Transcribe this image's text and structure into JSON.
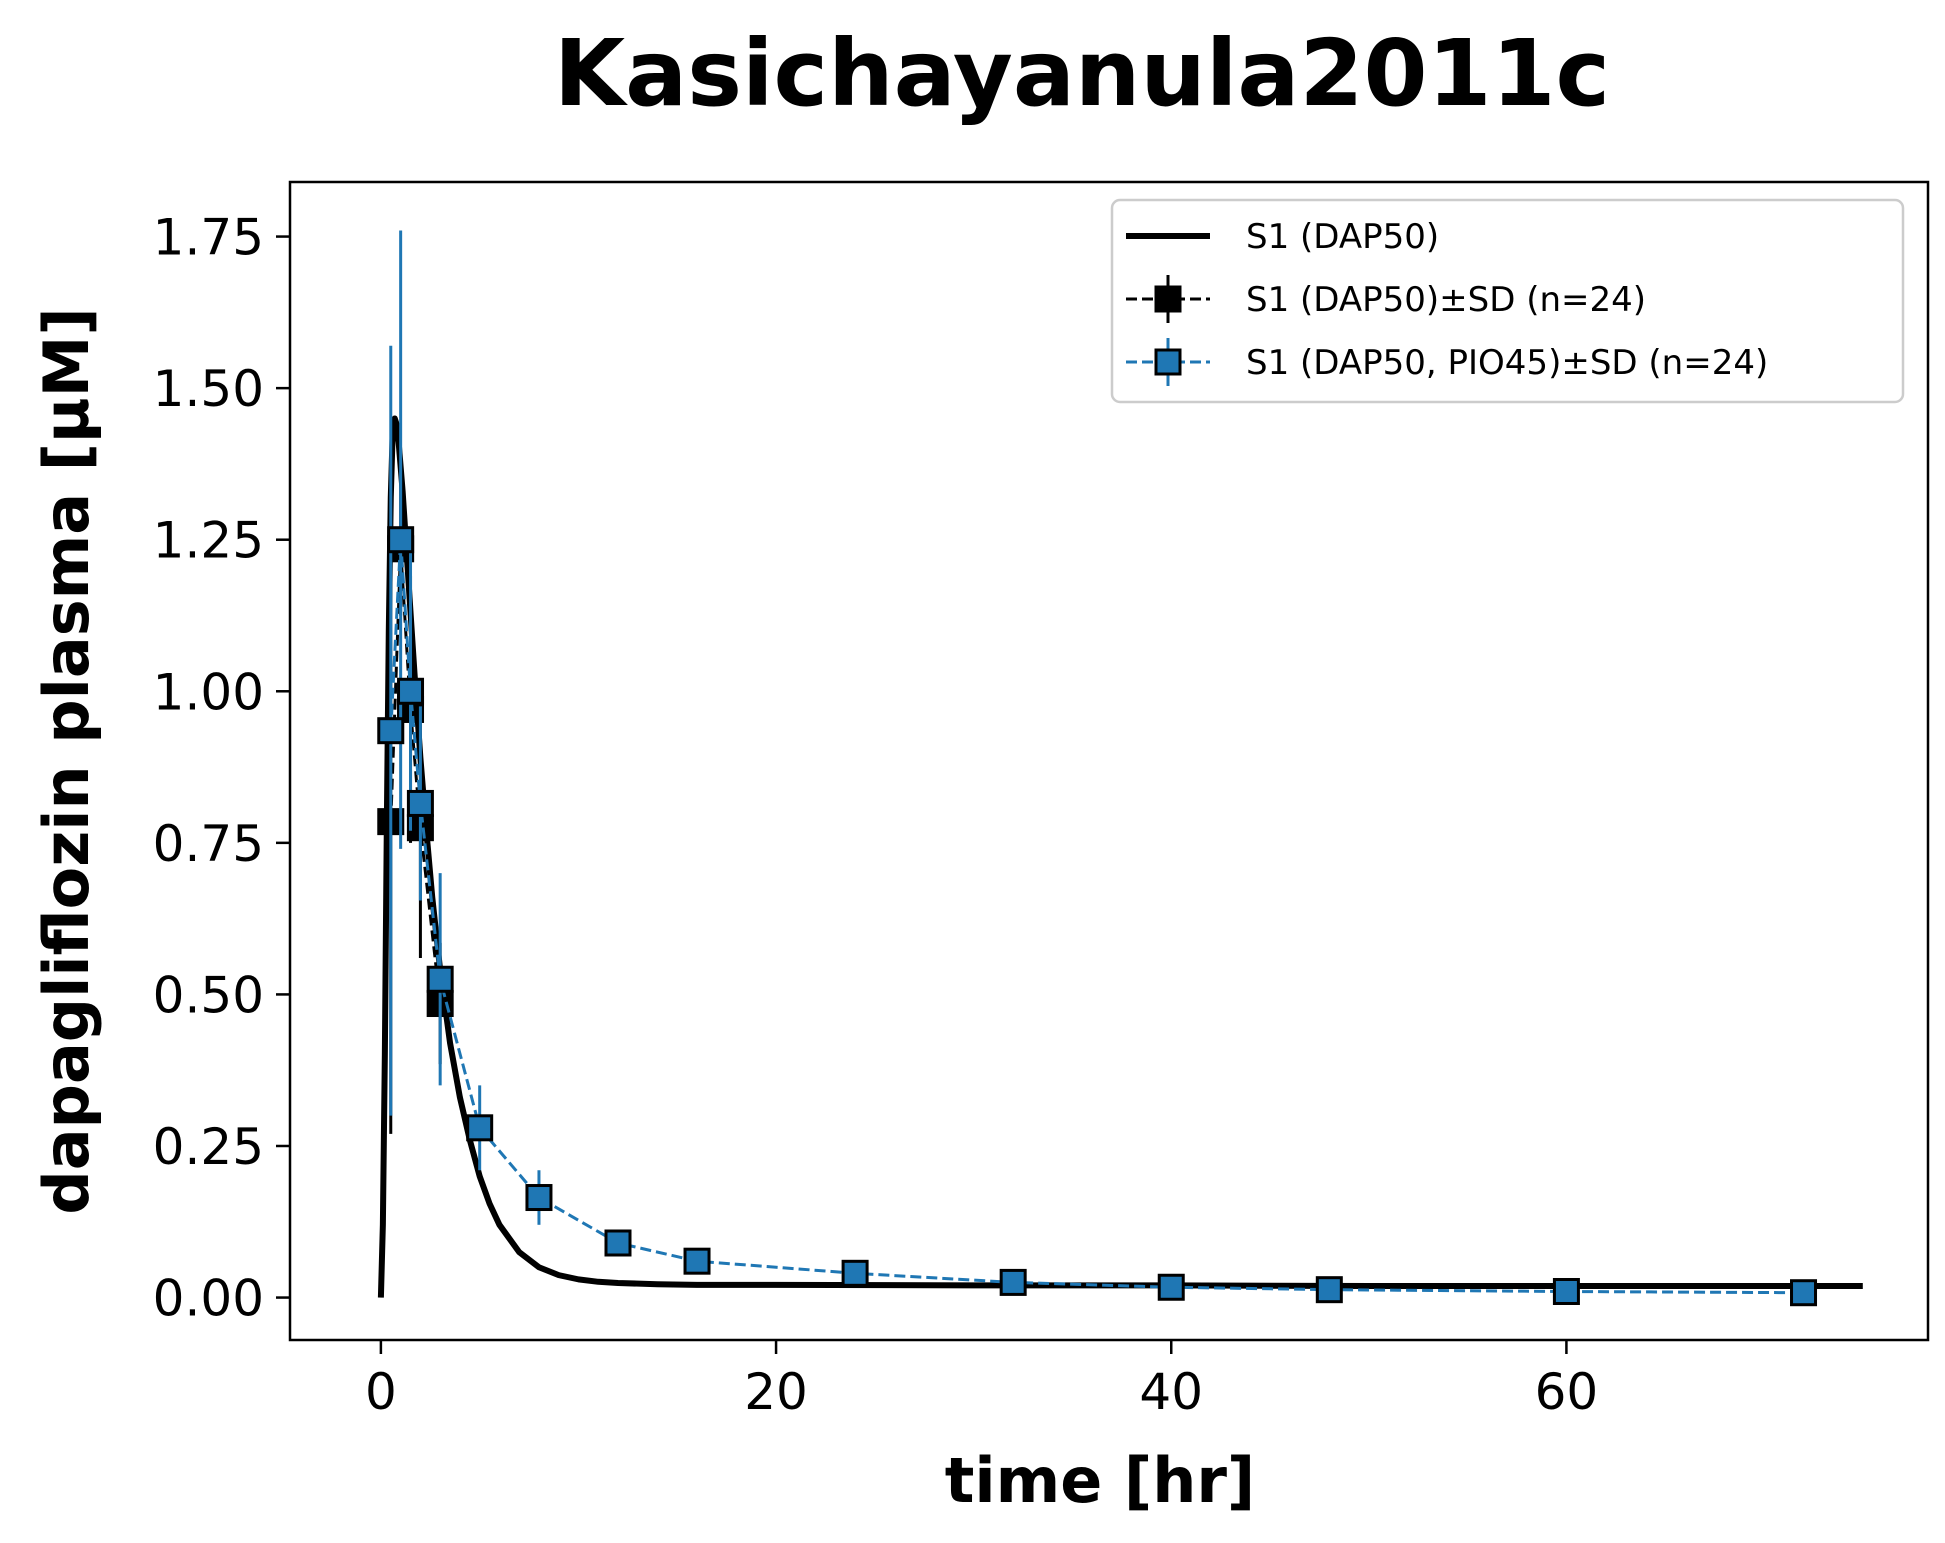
{
  "chart_data": {
    "type": "line",
    "title": "Kasichayanula2011c",
    "xlabel": "time [hr]",
    "ylabel": "dapagliflozin plasma [µM]",
    "xlim": [
      -4.6,
      78.3
    ],
    "ylim": [
      -0.07,
      1.84
    ],
    "xticks": [
      0,
      20,
      40,
      60
    ],
    "yticks": [
      0.0,
      0.25,
      0.5,
      0.75,
      1.0,
      1.25,
      1.5,
      1.75
    ],
    "xtick_labels": [
      "0",
      "20",
      "40",
      "60"
    ],
    "ytick_labels": [
      "0.00",
      "0.25",
      "0.50",
      "0.75",
      "1.00",
      "1.25",
      "1.50",
      "1.75"
    ],
    "grid": false,
    "legend_position": "top-right",
    "colors": {
      "sim": "#000000",
      "dap50": "#000000",
      "dap50_pio45": "#1f77b4"
    },
    "series": [
      {
        "name": "S1 (DAP50)",
        "kind": "simulation",
        "x": [
          0,
          0.1,
          0.2,
          0.3,
          0.4,
          0.5,
          0.6,
          0.7,
          0.8,
          0.9,
          1.0,
          1.1,
          1.2,
          1.3,
          1.5,
          1.7,
          2.0,
          2.3,
          2.6,
          3.0,
          3.5,
          4.0,
          4.5,
          5.0,
          5.5,
          6.0,
          7.0,
          8.0,
          9.0,
          10.0,
          11.0,
          12.0,
          14.0,
          16.0,
          20.0,
          30.0,
          40.0,
          50.0,
          60.0,
          70.0,
          75.0
        ],
        "y": [
          0.0,
          0.12,
          0.4,
          0.78,
          1.1,
          1.32,
          1.43,
          1.45,
          1.44,
          1.41,
          1.37,
          1.33,
          1.28,
          1.23,
          1.13,
          1.03,
          0.89,
          0.77,
          0.66,
          0.54,
          0.42,
          0.33,
          0.26,
          0.2,
          0.155,
          0.12,
          0.075,
          0.05,
          0.037,
          0.03,
          0.026,
          0.024,
          0.022,
          0.021,
          0.021,
          0.02,
          0.02,
          0.019,
          0.019,
          0.019,
          0.019
        ]
      },
      {
        "name": "S1 (DAP50)±SD (n=24)",
        "kind": "data",
        "x": [
          0.5,
          1.0,
          1.5,
          2.0,
          3.0
        ],
        "y": [
          0.785,
          1.235,
          0.97,
          0.775,
          0.485
        ],
        "sd": [
          0.515,
          0.11,
          0.22,
          0.215,
          0.1
        ]
      },
      {
        "name": "S1 (DAP50, PIO45)±SD (n=24)",
        "kind": "data",
        "x": [
          0.5,
          1.0,
          1.5,
          2.0,
          3.0,
          5.0,
          8.0,
          12.0,
          16.0,
          24.0,
          32.0,
          40.0,
          48.0,
          60.0,
          72.0
        ],
        "y": [
          0.935,
          1.25,
          1.0,
          0.815,
          0.525,
          0.28,
          0.165,
          0.09,
          0.06,
          0.04,
          0.025,
          0.017,
          0.013,
          0.01,
          0.008
        ],
        "sd": [
          0.635,
          0.51,
          0.23,
          0.16,
          0.175,
          0.07,
          0.045,
          0.02,
          0.01,
          0.008,
          0.006,
          0.005,
          0.004,
          0.003,
          0.003
        ]
      }
    ]
  }
}
